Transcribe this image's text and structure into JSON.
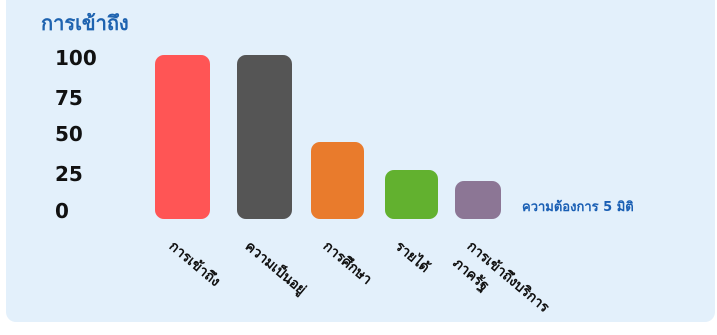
{
  "chart_data": {
    "type": "bar",
    "title": "การเข้าถึง",
    "categories": [
      "การเข้าถึง",
      "ความเป็นอยู่",
      "การศึกษา",
      "รายได้",
      "การเข้าถึงบริการ ภาครัฐ"
    ],
    "values": [
      100,
      100,
      47,
      30,
      23
    ],
    "colors": [
      "#ff5555",
      "#555555",
      "#e97b2c",
      "#62b12f",
      "#8c7695"
    ],
    "yticks": [
      "100",
      "75",
      "50",
      "25",
      "0"
    ],
    "ylim": [
      0,
      100
    ],
    "annotation": "ความต้องการ 5 มิติ"
  }
}
